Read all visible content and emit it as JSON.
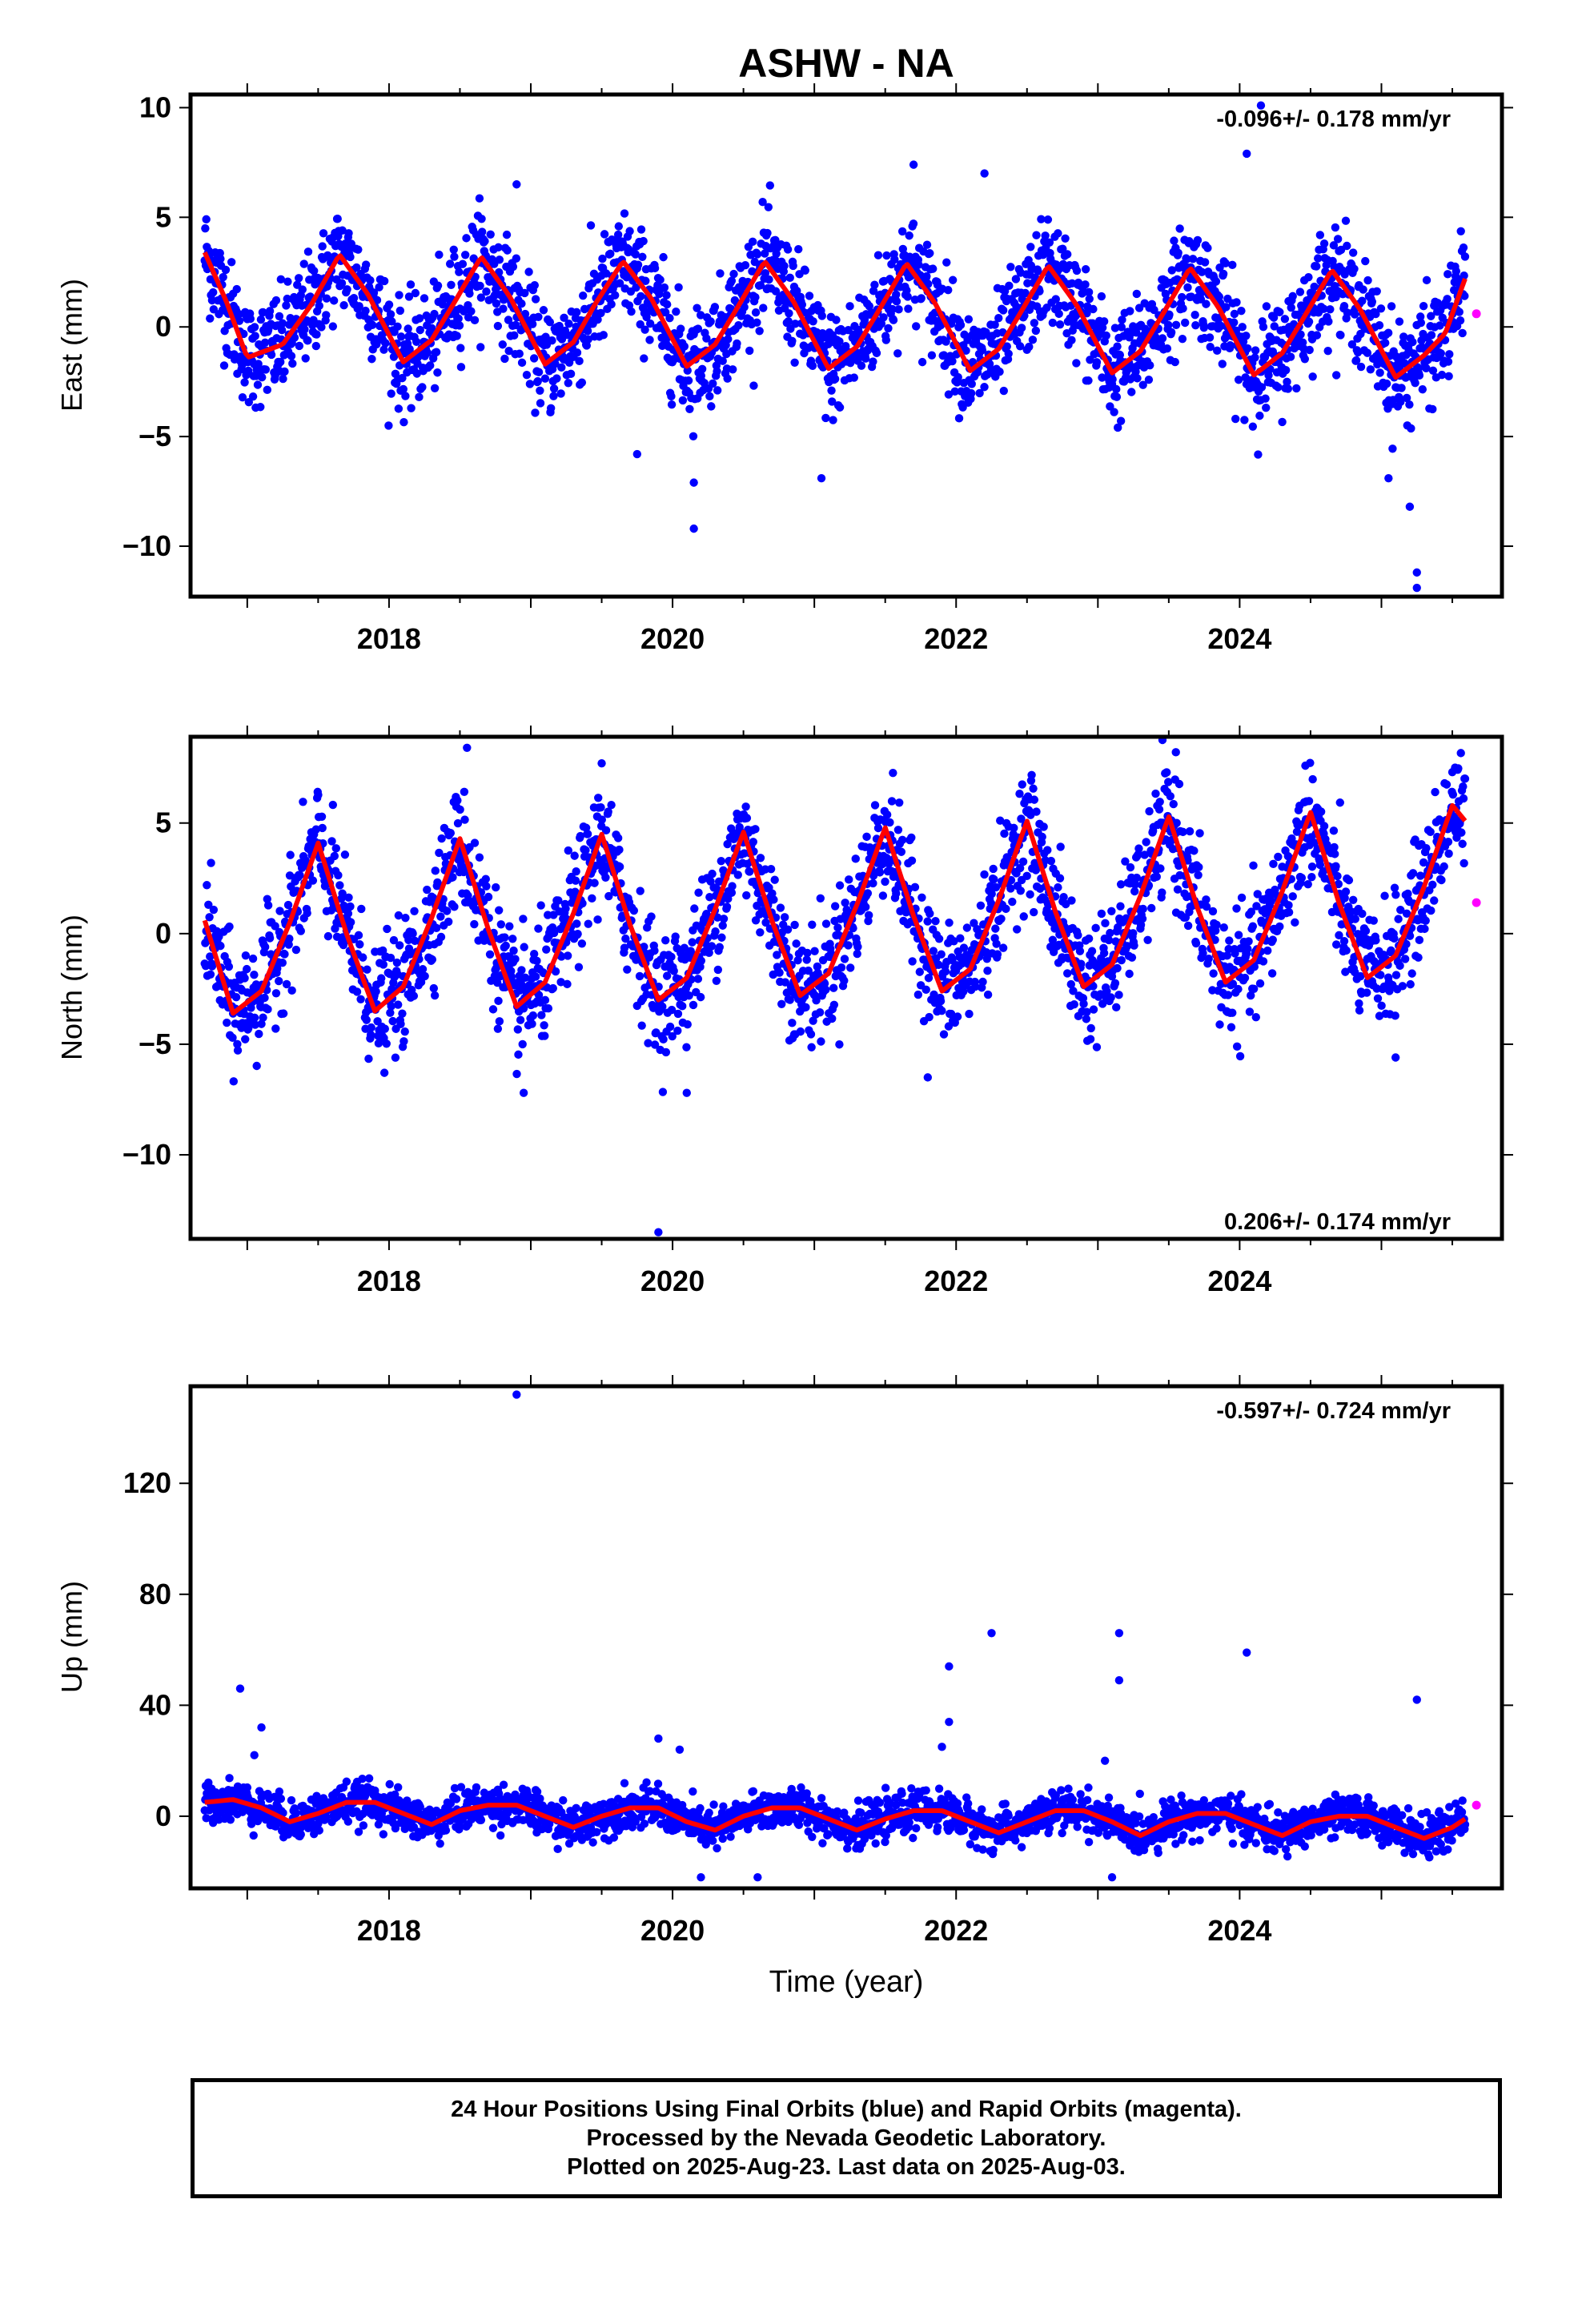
{
  "title": "ASHW - NA",
  "colors": {
    "final_orbits": "#0000ff",
    "rapid_orbits": "#ff00ff",
    "model_fit": "#ff0000",
    "axes": "#000000",
    "background": "#ffffff"
  },
  "xlabel": "Time (year)",
  "footer": {
    "line1": "24 Hour Positions Using Final Orbits (blue) and Rapid Orbits (magenta).",
    "line2": "Processed by the Nevada Geodetic Laboratory.",
    "line3": "Plotted on 2025-Aug-23. Last data on 2025-Aug-03."
  },
  "chart_data": [
    {
      "type": "scatter",
      "component": "east",
      "ylabel": "East (mm)",
      "rate_label": "-0.096+/- 0.178 mm/yr",
      "rate_position": "top-right",
      "xlim": [
        2016.6,
        2025.85
      ],
      "ylim": [
        -12.3,
        10.6
      ],
      "xticks": [
        2018,
        2020,
        2022,
        2024
      ],
      "yticks": [
        -10,
        -5,
        0,
        5,
        10
      ],
      "x_range": [
        2016.7,
        2025.59
      ],
      "rapid_point": {
        "x": 2025.67,
        "y": 0.6
      },
      "model": {
        "x": [
          2016.7,
          2016.85,
          2017.0,
          2017.25,
          2017.45,
          2017.65,
          2017.85,
          2018.1,
          2018.3,
          2018.45,
          2018.65,
          2018.85,
          2019.1,
          2019.3,
          2019.45,
          2019.65,
          2019.85,
          2020.1,
          2020.3,
          2020.45,
          2020.65,
          2020.85,
          2021.1,
          2021.3,
          2021.45,
          2021.65,
          2021.85,
          2022.1,
          2022.3,
          2022.45,
          2022.65,
          2022.85,
          2023.1,
          2023.3,
          2023.45,
          2023.65,
          2023.85,
          2024.1,
          2024.3,
          2024.45,
          2024.65,
          2024.85,
          2025.1,
          2025.3,
          2025.45,
          2025.59
        ],
        "y": [
          3.4,
          1.2,
          -1.4,
          -0.8,
          1.0,
          3.3,
          1.5,
          -1.6,
          -0.6,
          1.0,
          3.2,
          1.4,
          -1.7,
          -0.7,
          1.0,
          3.0,
          1.3,
          -1.8,
          -0.8,
          0.8,
          3.0,
          1.2,
          -1.9,
          -0.9,
          0.7,
          2.9,
          1.1,
          -2.0,
          -1.0,
          0.6,
          2.8,
          1.0,
          -2.1,
          -1.1,
          0.5,
          2.7,
          0.9,
          -2.2,
          -1.2,
          0.4,
          2.6,
          0.8,
          -2.3,
          -1.3,
          -0.3,
          2.2
        ]
      },
      "outliers": [
        {
          "x": 2024.15,
          "y": 10.1
        },
        {
          "x": 2024.05,
          "y": 7.9
        },
        {
          "x": 2018.9,
          "y": 6.5
        },
        {
          "x": 2020.15,
          "y": -9.2
        },
        {
          "x": 2020.15,
          "y": -7.1
        },
        {
          "x": 2021.05,
          "y": -6.9
        },
        {
          "x": 2025.2,
          "y": -8.2
        },
        {
          "x": 2025.25,
          "y": -11.2
        },
        {
          "x": 2025.25,
          "y": -11.9
        },
        {
          "x": 2025.05,
          "y": -6.9
        },
        {
          "x": 2019.75,
          "y": -5.8
        },
        {
          "x": 2022.2,
          "y": 7.0
        },
        {
          "x": 2021.7,
          "y": 7.4
        }
      ],
      "scatter_sigma": 1.2
    },
    {
      "type": "scatter",
      "component": "north",
      "ylabel": "North (mm)",
      "rate_label": "0.206+/- 0.174 mm/yr",
      "rate_position": "bottom-right",
      "xlim": [
        2016.6,
        2025.85
      ],
      "ylim": [
        -13.8,
        8.9
      ],
      "xticks": [
        2018,
        2020,
        2022,
        2024
      ],
      "yticks": [
        -10,
        -5,
        0,
        5
      ],
      "x_range": [
        2016.7,
        2025.59
      ],
      "rapid_point": {
        "x": 2025.67,
        "y": 1.4
      },
      "model": {
        "x": [
          2016.7,
          2016.9,
          2017.1,
          2017.3,
          2017.5,
          2017.7,
          2017.9,
          2018.1,
          2018.3,
          2018.5,
          2018.7,
          2018.9,
          2019.1,
          2019.3,
          2019.5,
          2019.7,
          2019.9,
          2020.1,
          2020.3,
          2020.5,
          2020.7,
          2020.9,
          2021.1,
          2021.3,
          2021.5,
          2021.7,
          2021.9,
          2022.1,
          2022.3,
          2022.5,
          2022.7,
          2022.9,
          2023.1,
          2023.3,
          2023.5,
          2023.7,
          2023.9,
          2024.1,
          2024.3,
          2024.5,
          2024.7,
          2024.9,
          2025.1,
          2025.3,
          2025.5,
          2025.59
        ],
        "y": [
          0.6,
          -3.6,
          -2.6,
          0.5,
          4.1,
          0.0,
          -3.5,
          -2.4,
          0.7,
          4.3,
          0.2,
          -3.3,
          -2.2,
          0.9,
          4.5,
          0.4,
          -3.0,
          -2.0,
          1.1,
          4.6,
          0.6,
          -2.8,
          -1.8,
          1.3,
          4.8,
          0.8,
          -2.6,
          -1.6,
          1.5,
          5.1,
          1.0,
          -2.4,
          -1.4,
          1.7,
          5.3,
          1.2,
          -2.2,
          -1.2,
          1.9,
          5.5,
          1.4,
          -2.0,
          -1.0,
          2.1,
          5.8,
          5.1
        ]
      },
      "outliers": [
        {
          "x": 2019.9,
          "y": -13.5
        },
        {
          "x": 2018.55,
          "y": 8.4
        },
        {
          "x": 2019.5,
          "y": 7.7
        },
        {
          "x": 2020.1,
          "y": -7.2
        },
        {
          "x": 2018.95,
          "y": -7.2
        },
        {
          "x": 2021.8,
          "y": -6.5
        },
        {
          "x": 2023.55,
          "y": 8.2
        },
        {
          "x": 2025.1,
          "y": -5.6
        },
        {
          "x": 2025.5,
          "y": 7.3
        }
      ],
      "scatter_sigma": 1.3
    },
    {
      "type": "scatter",
      "component": "up",
      "ylabel": "Up (mm)",
      "rate_label": "-0.597+/- 0.724 mm/yr",
      "rate_position": "top-right",
      "xlim": [
        2016.6,
        2025.85
      ],
      "ylim": [
        -26,
        155
      ],
      "xticks": [
        2018,
        2020,
        2022,
        2024
      ],
      "yticks": [
        0,
        40,
        80,
        120
      ],
      "x_range": [
        2016.7,
        2025.59
      ],
      "rapid_point": {
        "x": 2025.67,
        "y": 4
      },
      "model": {
        "x": [
          2016.7,
          2016.9,
          2017.1,
          2017.3,
          2017.5,
          2017.7,
          2017.9,
          2018.1,
          2018.3,
          2018.5,
          2018.7,
          2018.9,
          2019.1,
          2019.3,
          2019.5,
          2019.7,
          2019.9,
          2020.1,
          2020.3,
          2020.5,
          2020.7,
          2020.9,
          2021.1,
          2021.3,
          2021.5,
          2021.7,
          2021.9,
          2022.1,
          2022.3,
          2022.5,
          2022.7,
          2022.9,
          2023.1,
          2023.3,
          2023.5,
          2023.7,
          2023.9,
          2024.1,
          2024.3,
          2024.5,
          2024.7,
          2024.9,
          2025.1,
          2025.3,
          2025.5,
          2025.59
        ],
        "y": [
          5,
          6,
          3,
          -2,
          1,
          5,
          5,
          1,
          -3,
          2,
          4,
          4,
          0,
          -4,
          0,
          3,
          3,
          -2,
          -5,
          0,
          3,
          3,
          -1,
          -5,
          -1,
          2,
          2,
          -2,
          -6,
          -2,
          2,
          2,
          -2,
          -7,
          -2,
          1,
          1,
          -3,
          -7,
          -2,
          0,
          0,
          -4,
          -8,
          -4,
          -1
        ]
      },
      "outliers": [
        {
          "x": 2018.9,
          "y": 152
        },
        {
          "x": 2022.25,
          "y": 66
        },
        {
          "x": 2023.15,
          "y": 66
        },
        {
          "x": 2021.95,
          "y": 54
        },
        {
          "x": 2023.15,
          "y": 49
        },
        {
          "x": 2024.05,
          "y": 59
        },
        {
          "x": 2016.95,
          "y": 46
        },
        {
          "x": 2025.25,
          "y": 42
        },
        {
          "x": 2021.95,
          "y": 34
        },
        {
          "x": 2017.1,
          "y": 32
        },
        {
          "x": 2019.9,
          "y": 28
        },
        {
          "x": 2020.05,
          "y": 24
        },
        {
          "x": 2017.05,
          "y": 22
        },
        {
          "x": 2021.9,
          "y": 25
        },
        {
          "x": 2023.1,
          "y": -22
        },
        {
          "x": 2020.2,
          "y": -22
        },
        {
          "x": 2020.6,
          "y": -22
        },
        {
          "x": 2023.05,
          "y": 20
        }
      ],
      "scatter_sigma": 3.5
    }
  ]
}
